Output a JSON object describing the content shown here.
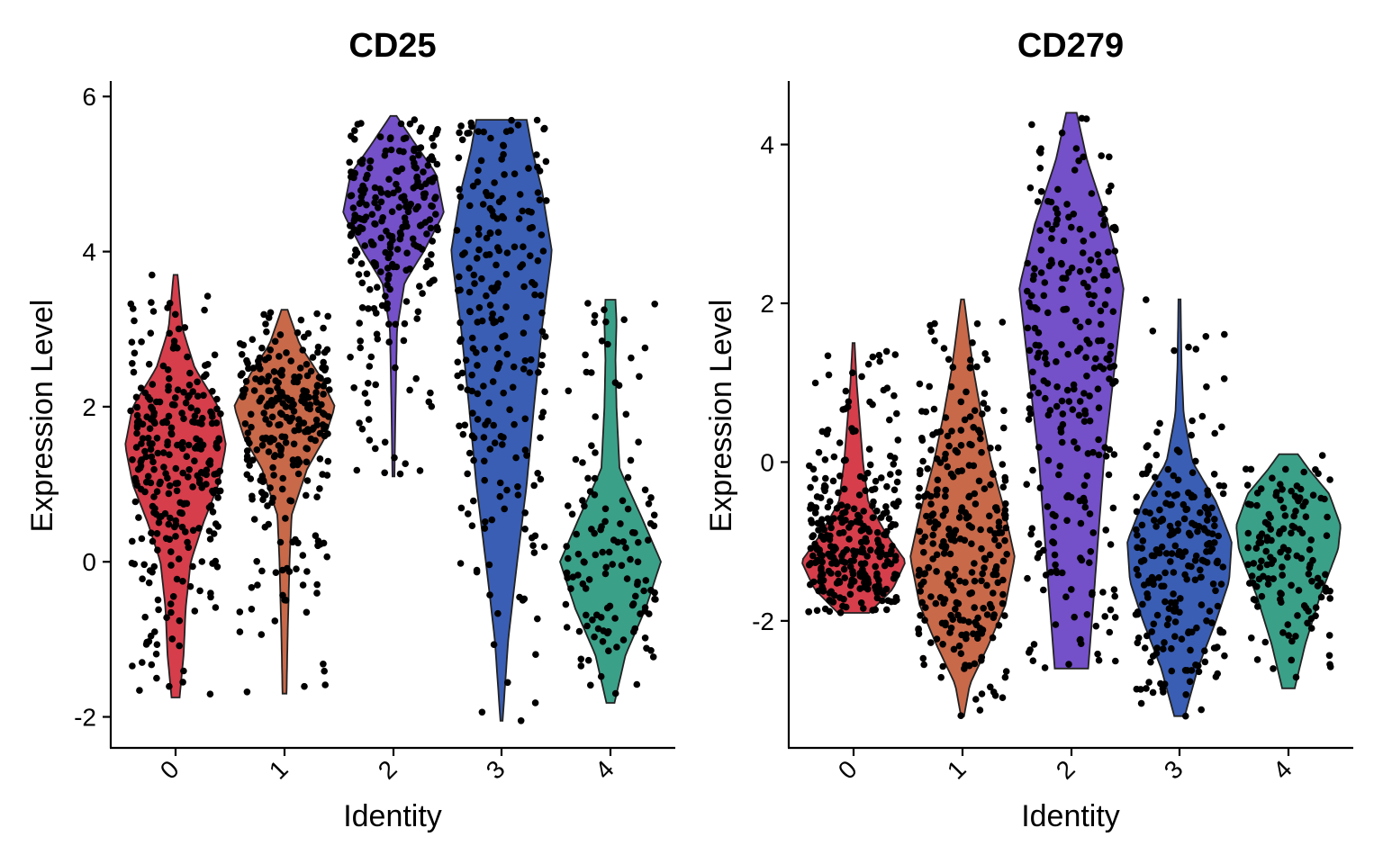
{
  "chart_data": [
    {
      "type": "violin",
      "title": "CD25",
      "xlabel": "Identity",
      "ylabel": "Expression Level",
      "categories": [
        "0",
        "1",
        "2",
        "3",
        "4"
      ],
      "ylim": [
        -2.4,
        6.2
      ],
      "yticks": [
        -2,
        0,
        2,
        4,
        6
      ],
      "ytick_labels": [
        "-2",
        "0",
        "2",
        "4",
        "6"
      ],
      "grid": false,
      "legend": "none",
      "colors": [
        "#D63E4C",
        "#C8694A",
        "#7450C9",
        "#3A5EB4",
        "#3BA088"
      ],
      "groups": [
        {
          "category": "0",
          "min": -1.75,
          "max": 3.7,
          "n_points": 290,
          "density": [
            [
              -1.75,
              0.08
            ],
            [
              -1.2,
              0.16
            ],
            [
              -0.6,
              0.2
            ],
            [
              0.0,
              0.3
            ],
            [
              0.5,
              0.55
            ],
            [
              1.0,
              0.85
            ],
            [
              1.5,
              1.0
            ],
            [
              2.0,
              0.85
            ],
            [
              2.5,
              0.38
            ],
            [
              3.0,
              0.14
            ],
            [
              3.7,
              0.04
            ]
          ]
        },
        {
          "category": "1",
          "min": -1.7,
          "max": 3.25,
          "n_points": 270,
          "density": [
            [
              -1.7,
              0.04
            ],
            [
              -1.0,
              0.06
            ],
            [
              0.0,
              0.1
            ],
            [
              0.6,
              0.14
            ],
            [
              1.2,
              0.45
            ],
            [
              1.6,
              0.8
            ],
            [
              2.0,
              1.0
            ],
            [
              2.4,
              0.7
            ],
            [
              2.8,
              0.3
            ],
            [
              3.25,
              0.06
            ]
          ]
        },
        {
          "category": "2",
          "min": 1.1,
          "max": 5.75,
          "n_points": 250,
          "density": [
            [
              1.1,
              0.02
            ],
            [
              2.0,
              0.04
            ],
            [
              3.0,
              0.07
            ],
            [
              3.6,
              0.22
            ],
            [
              4.0,
              0.6
            ],
            [
              4.5,
              1.0
            ],
            [
              5.0,
              0.85
            ],
            [
              5.4,
              0.42
            ],
            [
              5.75,
              0.06
            ]
          ]
        },
        {
          "category": "3",
          "min": -2.05,
          "max": 5.7,
          "n_points": 230,
          "density": [
            [
              -2.05,
              0.02
            ],
            [
              -1.0,
              0.12
            ],
            [
              0.0,
              0.28
            ],
            [
              1.0,
              0.45
            ],
            [
              2.0,
              0.58
            ],
            [
              3.0,
              0.72
            ],
            [
              4.0,
              0.9
            ],
            [
              4.8,
              0.72
            ],
            [
              5.3,
              0.55
            ],
            [
              5.7,
              0.45
            ]
          ]
        },
        {
          "category": "4",
          "min": -1.82,
          "max": 3.38,
          "n_points": 130,
          "density": [
            [
              -1.82,
              0.08
            ],
            [
              -1.2,
              0.3
            ],
            [
              -0.6,
              0.7
            ],
            [
              0.0,
              1.0
            ],
            [
              0.6,
              0.6
            ],
            [
              1.2,
              0.18
            ],
            [
              2.0,
              0.12
            ],
            [
              2.6,
              0.1
            ],
            [
              3.1,
              0.12
            ],
            [
              3.38,
              0.1
            ]
          ]
        }
      ]
    },
    {
      "type": "violin",
      "title": "CD279",
      "xlabel": "Identity",
      "ylabel": "Expression Level",
      "categories": [
        "0",
        "1",
        "2",
        "3",
        "4"
      ],
      "ylim": [
        -3.6,
        4.8
      ],
      "yticks": [
        -2,
        0,
        2,
        4
      ],
      "ytick_labels": [
        "-2",
        "0",
        "2",
        "4"
      ],
      "grid": false,
      "legend": "none",
      "colors": [
        "#D63E4C",
        "#C8694A",
        "#7450C9",
        "#3A5EB4",
        "#3BA088"
      ],
      "groups": [
        {
          "category": "0",
          "min": -1.9,
          "max": 1.5,
          "n_points": 290,
          "density": [
            [
              -1.9,
              0.3
            ],
            [
              -1.6,
              0.75
            ],
            [
              -1.25,
              1.0
            ],
            [
              -0.9,
              0.62
            ],
            [
              -0.5,
              0.28
            ],
            [
              0.0,
              0.18
            ],
            [
              0.5,
              0.12
            ],
            [
              1.0,
              0.06
            ],
            [
              1.5,
              0.02
            ]
          ]
        },
        {
          "category": "1",
          "min": -3.2,
          "max": 2.05,
          "n_points": 280,
          "density": [
            [
              -3.2,
              0.03
            ],
            [
              -2.8,
              0.14
            ],
            [
              -2.3,
              0.5
            ],
            [
              -1.8,
              0.82
            ],
            [
              -1.2,
              1.0
            ],
            [
              -0.6,
              0.8
            ],
            [
              0.0,
              0.55
            ],
            [
              0.6,
              0.36
            ],
            [
              1.2,
              0.2
            ],
            [
              2.05,
              0.03
            ]
          ]
        },
        {
          "category": "2",
          "min": -2.6,
          "max": 4.4,
          "n_points": 260,
          "density": [
            [
              -2.6,
              0.32
            ],
            [
              -1.5,
              0.45
            ],
            [
              0.0,
              0.62
            ],
            [
              1.5,
              0.88
            ],
            [
              2.2,
              1.0
            ],
            [
              3.0,
              0.7
            ],
            [
              3.8,
              0.3
            ],
            [
              4.4,
              0.1
            ]
          ]
        },
        {
          "category": "3",
          "min": -3.2,
          "max": 2.05,
          "n_points": 230,
          "density": [
            [
              -3.2,
              0.1
            ],
            [
              -2.6,
              0.35
            ],
            [
              -2.0,
              0.7
            ],
            [
              -1.5,
              0.95
            ],
            [
              -1.0,
              1.0
            ],
            [
              -0.5,
              0.7
            ],
            [
              0.0,
              0.25
            ],
            [
              0.6,
              0.08
            ],
            [
              1.2,
              0.04
            ],
            [
              2.05,
              0.02
            ]
          ]
        },
        {
          "category": "4",
          "min": -2.85,
          "max": 0.1,
          "n_points": 140,
          "density": [
            [
              -2.85,
              0.12
            ],
            [
              -2.3,
              0.32
            ],
            [
              -1.7,
              0.6
            ],
            [
              -1.1,
              0.95
            ],
            [
              -0.8,
              1.0
            ],
            [
              -0.4,
              0.78
            ],
            [
              -0.1,
              0.4
            ],
            [
              0.1,
              0.18
            ]
          ]
        }
      ]
    }
  ]
}
